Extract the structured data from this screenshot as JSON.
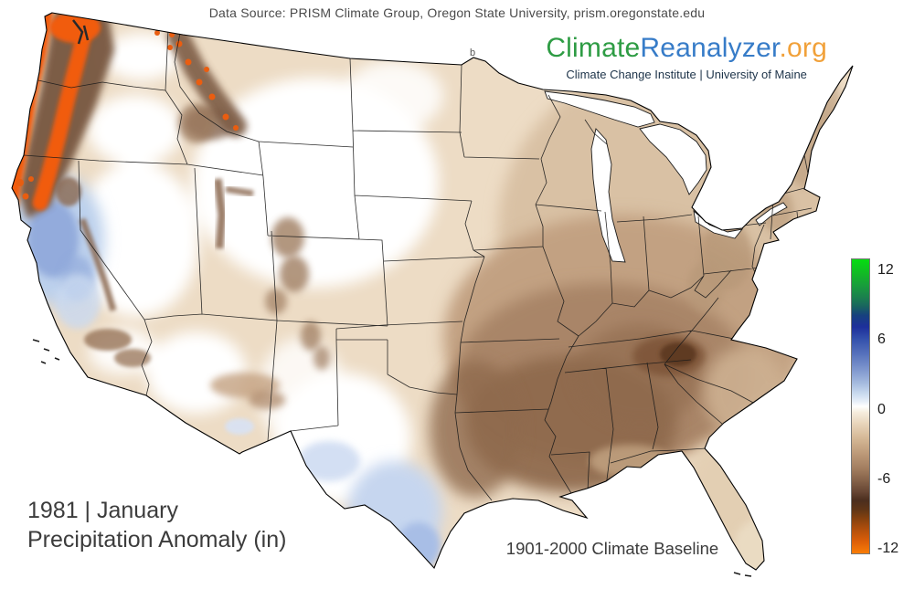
{
  "header": {
    "data_source": "Data Source: PRISM Climate Group, Oregon State University, prism.oregonstate.edu"
  },
  "logo": {
    "part_climate": "Climate",
    "part_reanalyzer": "Reanalyzer",
    "part_org": ".org",
    "tagline": "Climate Change Institute | University of Maine",
    "colors": {
      "climate": "#2e9c44",
      "reanalyzer": "#377cc8",
      "org": "#f1a13a",
      "tagline": "#1d3349"
    }
  },
  "titles": {
    "line1": "1981 | January",
    "line2": "Precipitation Anomaly (in)",
    "baseline_note": "1901-2000 Climate Baseline"
  },
  "artifact_text": "b",
  "colorbar": {
    "units": "in",
    "min": -12,
    "max": 12,
    "ticks": [
      {
        "label": "12",
        "pos_pct": 4.0
      },
      {
        "label": "6",
        "pos_pct": 27.5
      },
      {
        "label": "0",
        "pos_pct": 51.2
      },
      {
        "label": "-6",
        "pos_pct": 74.7
      },
      {
        "label": "-12",
        "pos_pct": 98.1
      }
    ],
    "gradient_stops": [
      {
        "p": 0,
        "c": "#05dd10"
      },
      {
        "p": 5,
        "c": "#12b826"
      },
      {
        "p": 9,
        "c": "#189c3c"
      },
      {
        "p": 13,
        "c": "#1b7f4e"
      },
      {
        "p": 16,
        "c": "#19645f"
      },
      {
        "p": 19,
        "c": "#17417e"
      },
      {
        "p": 23,
        "c": "#1d2f9b"
      },
      {
        "p": 27,
        "c": "#3350ac"
      },
      {
        "p": 32,
        "c": "#5570bb"
      },
      {
        "p": 37,
        "c": "#7b93cc"
      },
      {
        "p": 42,
        "c": "#a4bade"
      },
      {
        "p": 46,
        "c": "#cdddf0"
      },
      {
        "p": 48.5,
        "c": "#e9f0f9"
      },
      {
        "p": 50,
        "c": "#ffffff"
      },
      {
        "p": 52,
        "c": "#f6edde"
      },
      {
        "p": 56,
        "c": "#e8d4ba"
      },
      {
        "p": 61,
        "c": "#d4b795"
      },
      {
        "p": 66,
        "c": "#bd9a79"
      },
      {
        "p": 71,
        "c": "#a37e60"
      },
      {
        "p": 75,
        "c": "#86634a"
      },
      {
        "p": 79,
        "c": "#674634"
      },
      {
        "p": 82,
        "c": "#4b2e1e"
      },
      {
        "p": 85,
        "c": "#5e3517"
      },
      {
        "p": 88,
        "c": "#83400f"
      },
      {
        "p": 92,
        "c": "#b34f0c"
      },
      {
        "p": 96,
        "c": "#dd5f08"
      },
      {
        "p": 100,
        "c": "#f97d07"
      }
    ]
  },
  "map": {
    "type": "choropleth",
    "region": "Contiguous United States with state boundaries",
    "variable": "Precipitation Anomaly (in)",
    "period": "January 1981",
    "baseline": "1901-2000",
    "palette": {
      "base_land": "#eddcc5",
      "near_zero_white": "#ffffff",
      "positive_blue_light": "#c6d6ef",
      "positive_blue_medium": "#93abdc",
      "negative_tan": "#d9c1a4",
      "negative_brown_medium": "#a98568",
      "negative_brown_dark": "#8f6a4e",
      "negative_brown_darkest": "#5f3b24",
      "extreme_negative_orange": "#f15c0c",
      "lake_fill": "#ffffff",
      "border": "#1b1b1b"
    },
    "patterns": [
      {
        "area": "Pacific Northwest coast and Cascades (WA, OR, NW CA)",
        "anomaly": "strongly negative, near -12 in (orange) with dark brown flanks"
      },
      {
        "area": "Northern Idaho / western Montana mountains",
        "anomaly": "strongly negative (brown with orange pockets)"
      },
      {
        "area": "Central and northern California",
        "anomaly": "positive, up to about +3 to +6 in (blue)"
      },
      {
        "area": "Great Basin, northern Plains, eastern Montana, Dakotas, Nebraska, Kansas, eastern Colorado, west Texas, western Arizona, New Mexico",
        "anomaly": "near zero (white)"
      },
      {
        "area": "Upper Midwest, Northeast, Florida peninsula",
        "anomaly": "slightly negative, about -1 to -2 in (light tan)"
      },
      {
        "area": "Mid-South and Southeast (AR, LA, MS, AL, TN, GA, east TX)",
        "anomaly": "negative, about -4 to -7 in (medium to dark brown)"
      },
      {
        "area": "Southern Appalachians (western NC / north GA)",
        "anomaly": "locally near -8 in (darkest brown spot)"
      },
      {
        "area": "South Texas / Rio Grande Valley",
        "anomaly": "positive, about +1 to +3 in (light blue)"
      }
    ]
  }
}
